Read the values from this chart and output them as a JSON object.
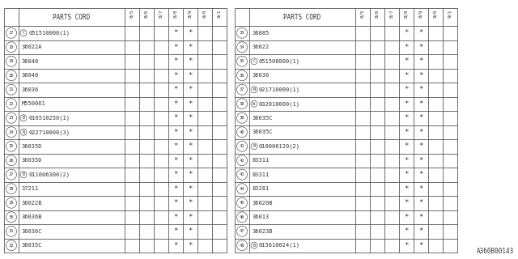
{
  "title": "",
  "watermark": "A360B00143",
  "bg_color": "#ffffff",
  "border_color": "#555555",
  "text_color": "#333333",
  "header_bg": "#ffffff",
  "col_headers": [
    "8/5",
    "8/6",
    "8/7",
    "8/8",
    "8/9",
    "9/0",
    "9/1"
  ],
  "star_cols": [
    3,
    4
  ],
  "left_table": {
    "rows": [
      {
        "num": "17",
        "prefix": "C",
        "part": "051510000(1)"
      },
      {
        "num": "18",
        "prefix": "",
        "part": "36022A"
      },
      {
        "num": "19",
        "prefix": "",
        "part": "36040"
      },
      {
        "num": "20",
        "prefix": "",
        "part": "36040"
      },
      {
        "num": "21",
        "prefix": "",
        "part": "36036"
      },
      {
        "num": "22",
        "prefix": "",
        "part": "M550061"
      },
      {
        "num": "23",
        "prefix": "B",
        "part": "016510250(1)"
      },
      {
        "num": "24",
        "prefix": "N",
        "part": "022710000(3)"
      },
      {
        "num": "25",
        "prefix": "",
        "part": "36035D"
      },
      {
        "num": "26",
        "prefix": "",
        "part": "36035D"
      },
      {
        "num": "27",
        "prefix": "B",
        "part": "011006300(2)"
      },
      {
        "num": "28",
        "prefix": "",
        "part": "37211"
      },
      {
        "num": "29",
        "prefix": "",
        "part": "36022B"
      },
      {
        "num": "30",
        "prefix": "",
        "part": "36036B"
      },
      {
        "num": "31",
        "prefix": "",
        "part": "36036C"
      },
      {
        "num": "32",
        "prefix": "",
        "part": "36035C"
      }
    ]
  },
  "right_table": {
    "rows": [
      {
        "num": "33",
        "prefix": "",
        "part": "36085"
      },
      {
        "num": "34",
        "prefix": "",
        "part": "36022"
      },
      {
        "num": "35",
        "prefix": "C",
        "part": "051508000(1)"
      },
      {
        "num": "36",
        "prefix": "",
        "part": "36030"
      },
      {
        "num": "37",
        "prefix": "N",
        "part": "021710000(1)"
      },
      {
        "num": "38",
        "prefix": "W",
        "part": "032010000(1)"
      },
      {
        "num": "39",
        "prefix": "",
        "part": "36035C"
      },
      {
        "num": "40",
        "prefix": "",
        "part": "36035C"
      },
      {
        "num": "41",
        "prefix": "B",
        "part": "010006120(2)"
      },
      {
        "num": "42",
        "prefix": "",
        "part": "83311"
      },
      {
        "num": "43",
        "prefix": "",
        "part": "83311"
      },
      {
        "num": "44",
        "prefix": "",
        "part": "83281"
      },
      {
        "num": "45",
        "prefix": "",
        "part": "36020B"
      },
      {
        "num": "46",
        "prefix": "",
        "part": "36013"
      },
      {
        "num": "47",
        "prefix": "",
        "part": "36023B"
      },
      {
        "num": "48",
        "prefix": "B",
        "part": "015610024(1)"
      }
    ]
  }
}
